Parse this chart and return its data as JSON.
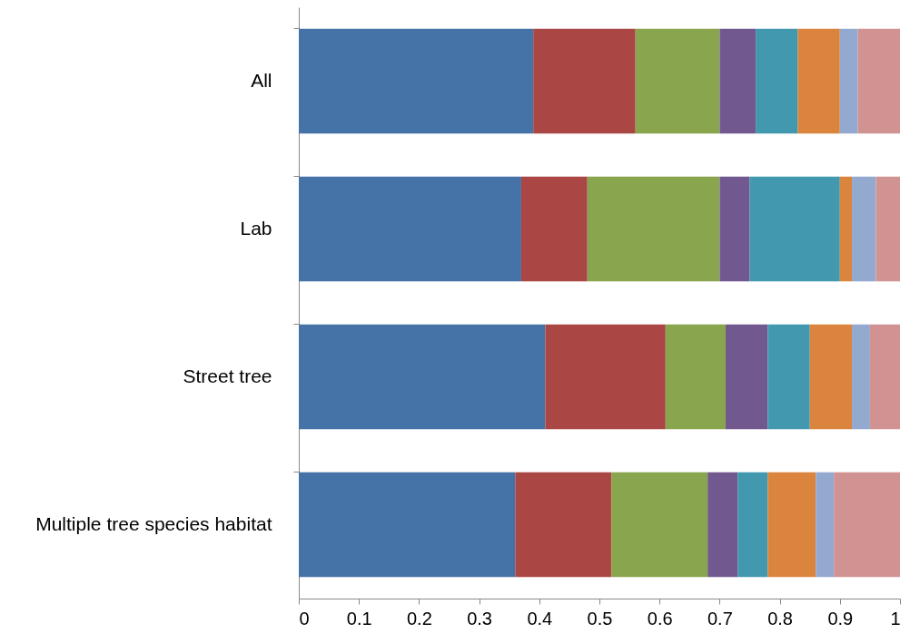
{
  "chart_data": {
    "type": "bar",
    "orientation": "horizontal",
    "stacked": true,
    "categories": [
      "All",
      "Lab",
      "Street tree",
      "Multiple tree species habitat"
    ],
    "series": [
      {
        "color": "#4572a7",
        "values": [
          0.39,
          0.37,
          0.41,
          0.36
        ]
      },
      {
        "color": "#aa4643",
        "values": [
          0.17,
          0.11,
          0.2,
          0.16
        ]
      },
      {
        "color": "#89a54e",
        "values": [
          0.14,
          0.22,
          0.1,
          0.16
        ]
      },
      {
        "color": "#71588f",
        "values": [
          0.06,
          0.05,
          0.07,
          0.05
        ]
      },
      {
        "color": "#4198af",
        "values": [
          0.07,
          0.15,
          0.07,
          0.05
        ]
      },
      {
        "color": "#db843d",
        "values": [
          0.07,
          0.02,
          0.07,
          0.08
        ]
      },
      {
        "color": "#93a9cf",
        "values": [
          0.03,
          0.04,
          0.03,
          0.03
        ]
      },
      {
        "color": "#d19392",
        "values": [
          0.07,
          0.04,
          0.05,
          0.11
        ]
      }
    ],
    "xlim": [
      0,
      1
    ],
    "xticks": [
      0,
      0.1,
      0.2,
      0.3,
      0.4,
      0.5,
      0.6,
      0.7,
      0.8,
      0.9,
      1
    ],
    "grid": false
  }
}
